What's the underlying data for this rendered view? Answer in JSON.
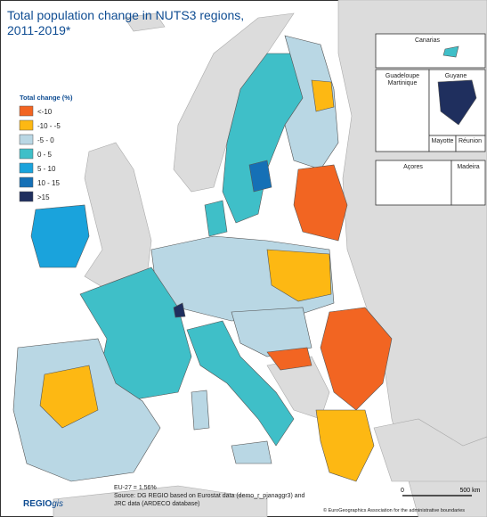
{
  "header": {
    "title": [
      "Total population change in NUTS3 regions,",
      "2011-2019*"
    ]
  },
  "legend": {
    "title": "Total change (%)",
    "items": [
      {
        "label": "<-10",
        "color": "#f26522"
      },
      {
        "label": "-10 - -5",
        "color": "#fdb813"
      },
      {
        "label": "-5 - 0",
        "color": "#b9d7e4"
      },
      {
        "label": "0 - 5",
        "color": "#3fbfc8"
      },
      {
        "label": "5 - 10",
        "color": "#1aa3dc"
      },
      {
        "label": "10 - 15",
        "color": "#1570b6"
      },
      {
        "label": ">15",
        "color": "#1f2f5e"
      }
    ]
  },
  "insets": [
    "Canarias",
    "Guadeloupe",
    "Martinique",
    "Guyane",
    "Mayotte",
    "Réunion",
    "Açores",
    "Madeira"
  ],
  "footer": {
    "eu": "EU-27 = 1.56%",
    "source": [
      "Source: DG REGIO based on Eurostat data (demo_r_pjanaggr3) and",
      "JRC data (ARDECO database)"
    ],
    "copyright": "© EuroGeographics Association for the administrative boundaries",
    "logo": [
      "REGIO",
      "gis"
    ]
  },
  "scale": {
    "labels": [
      "0",
      "500 km"
    ]
  }
}
